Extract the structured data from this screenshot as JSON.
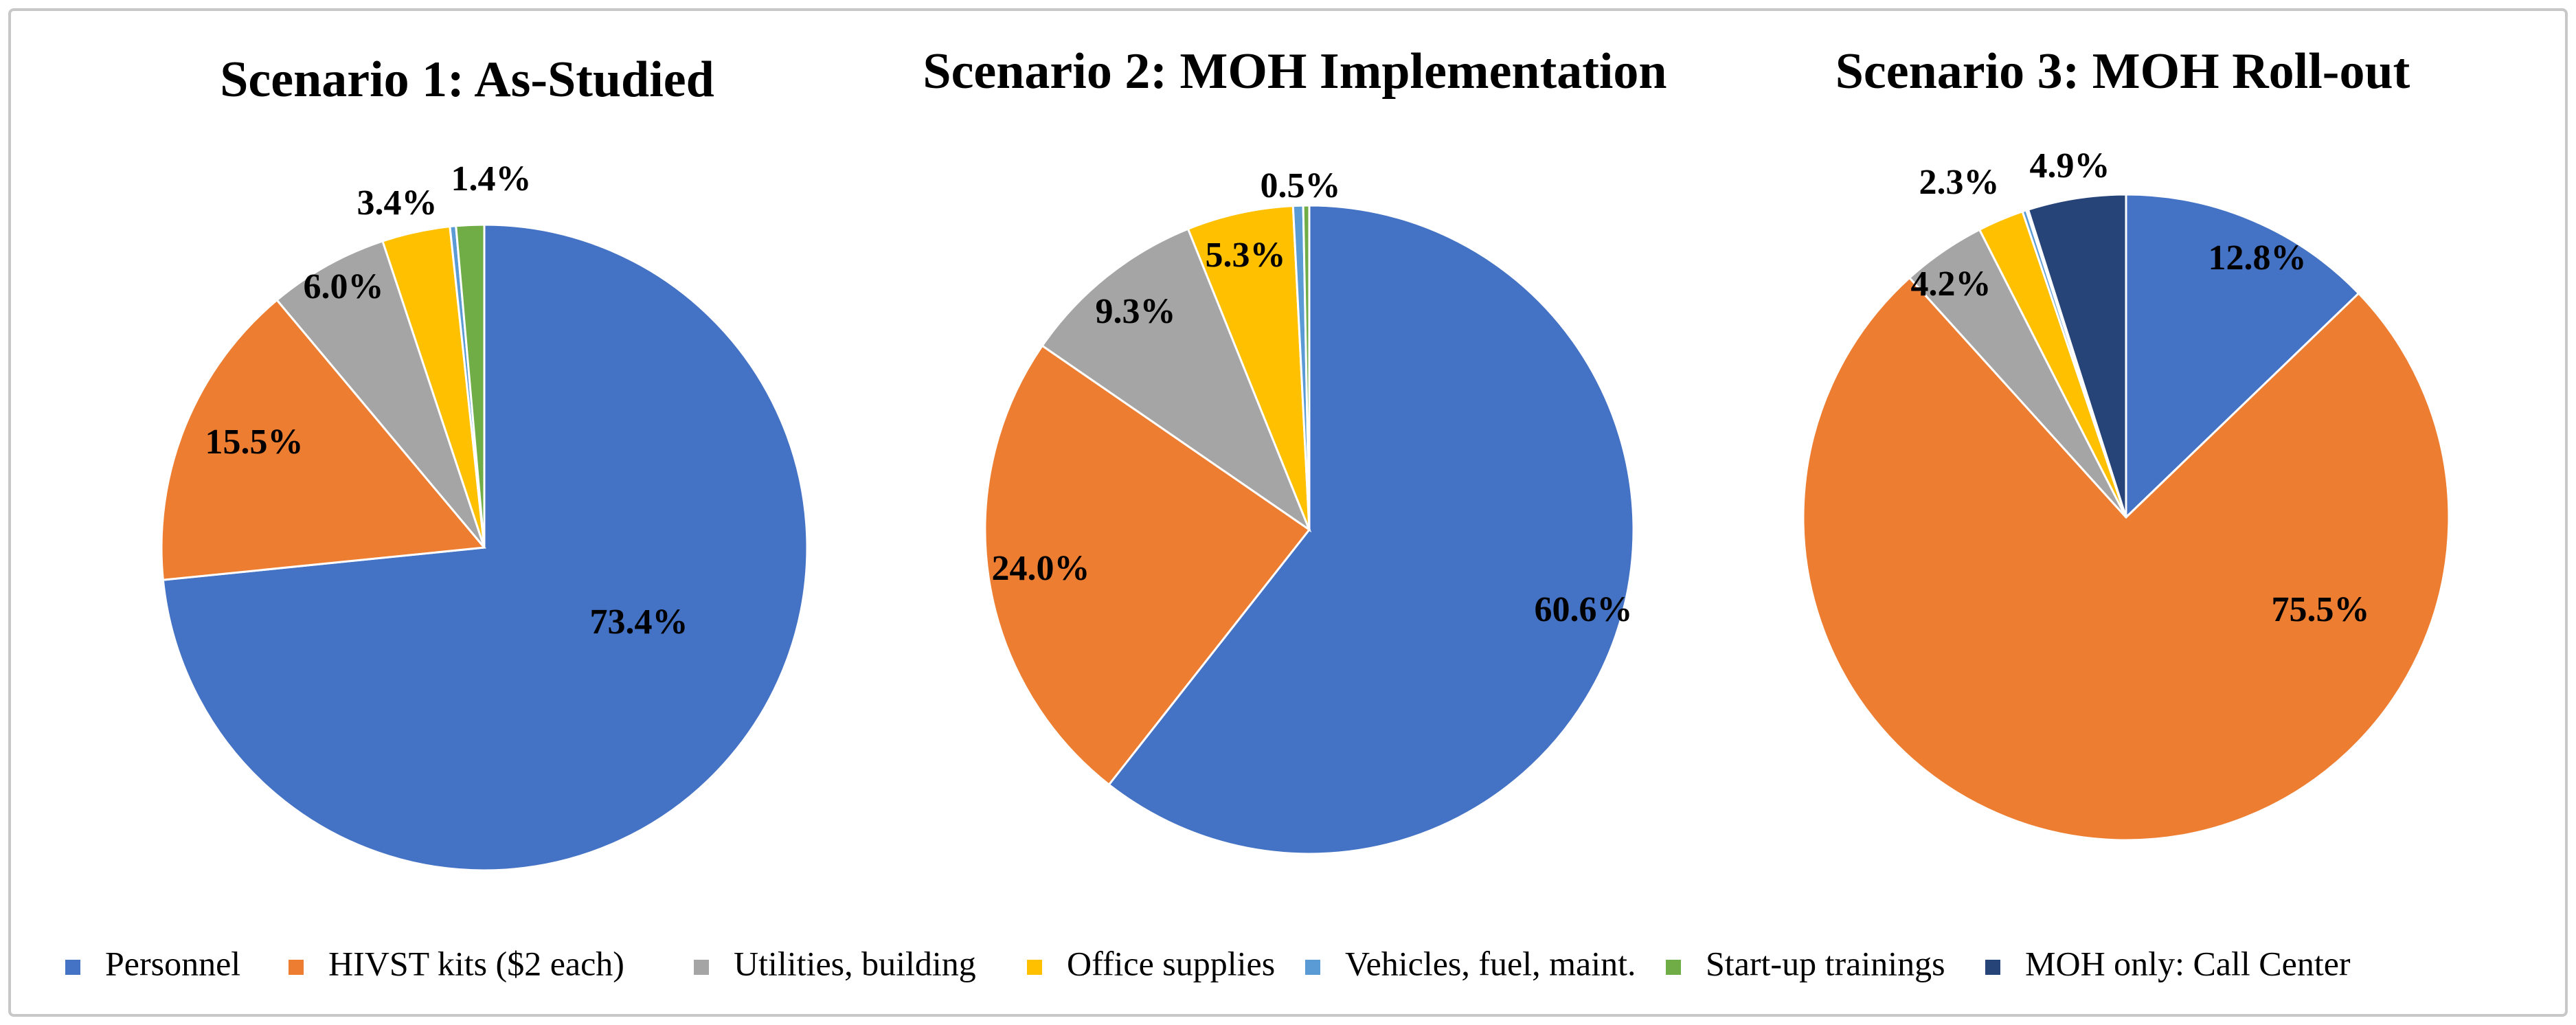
{
  "colors": {
    "Personnel": "#4472C4",
    "HIVST kits ($2 each)": "#ED7D31",
    "Utilities, building": "#A5A5A5",
    "Office supplies": "#FFC000",
    "Vehicles, fuel, maint.": "#5B9BD5",
    "Start-up trainings": "#70AD47",
    "MOH only: Call Center": "#264478"
  },
  "legend": [
    {
      "label": "Personnel",
      "color": "#4472C4"
    },
    {
      "label": "HIVST kits ($2 each)",
      "color": "#ED7D31"
    },
    {
      "label": "Utilities, building",
      "color": "#A5A5A5"
    },
    {
      "label": "Office supplies",
      "color": "#FFC000"
    },
    {
      "label": "Vehicles, fuel, maint.",
      "color": "#5B9BD5"
    },
    {
      "label": "Start-up trainings",
      "color": "#70AD47"
    },
    {
      "label": "MOH only: Call Center",
      "color": "#264478"
    }
  ],
  "chart_data": [
    {
      "type": "pie",
      "title": "Scenario 1: As-Studied",
      "slices": [
        {
          "label": "Personnel",
          "value": 73.4,
          "data_label": "73.4%"
        },
        {
          "label": "HIVST kits ($2 each)",
          "value": 15.5,
          "data_label": "15.5%"
        },
        {
          "label": "Utilities, building",
          "value": 6.0,
          "data_label": "6.0%"
        },
        {
          "label": "Office supplies",
          "value": 3.4,
          "data_label": "3.4%"
        },
        {
          "label": "Vehicles, fuel, maint.",
          "value": 0.3,
          "data_label": ""
        },
        {
          "label": "Start-up trainings",
          "value": 1.4,
          "data_label": "1.4%"
        }
      ]
    },
    {
      "type": "pie",
      "title": "Scenario 2: MOH Implementation",
      "slices": [
        {
          "label": "Personnel",
          "value": 60.6,
          "data_label": "60.6%"
        },
        {
          "label": "HIVST kits ($2 each)",
          "value": 24.0,
          "data_label": "24.0%"
        },
        {
          "label": "Utilities, building",
          "value": 9.3,
          "data_label": "9.3%"
        },
        {
          "label": "Office supplies",
          "value": 5.3,
          "data_label": "5.3%"
        },
        {
          "label": "Vehicles, fuel, maint.",
          "value": 0.5,
          "data_label": "0.5%"
        },
        {
          "label": "Start-up trainings",
          "value": 0.3,
          "data_label": ""
        }
      ]
    },
    {
      "type": "pie",
      "title": "Scenario 3: MOH Roll-out",
      "slices": [
        {
          "label": "Personnel",
          "value": 12.8,
          "data_label": "12.8%"
        },
        {
          "label": "HIVST kits ($2 each)",
          "value": 75.5,
          "data_label": "75.5%"
        },
        {
          "label": "Utilities, building",
          "value": 4.2,
          "data_label": "4.2%"
        },
        {
          "label": "Office supplies",
          "value": 2.3,
          "data_label": "2.3%"
        },
        {
          "label": "Vehicles, fuel, maint.",
          "value": 0.2,
          "data_label": ""
        },
        {
          "label": "Start-up trainings",
          "value": 0.1,
          "data_label": ""
        },
        {
          "label": "MOH only: Call Center",
          "value": 4.9,
          "data_label": "4.9%"
        }
      ]
    }
  ]
}
